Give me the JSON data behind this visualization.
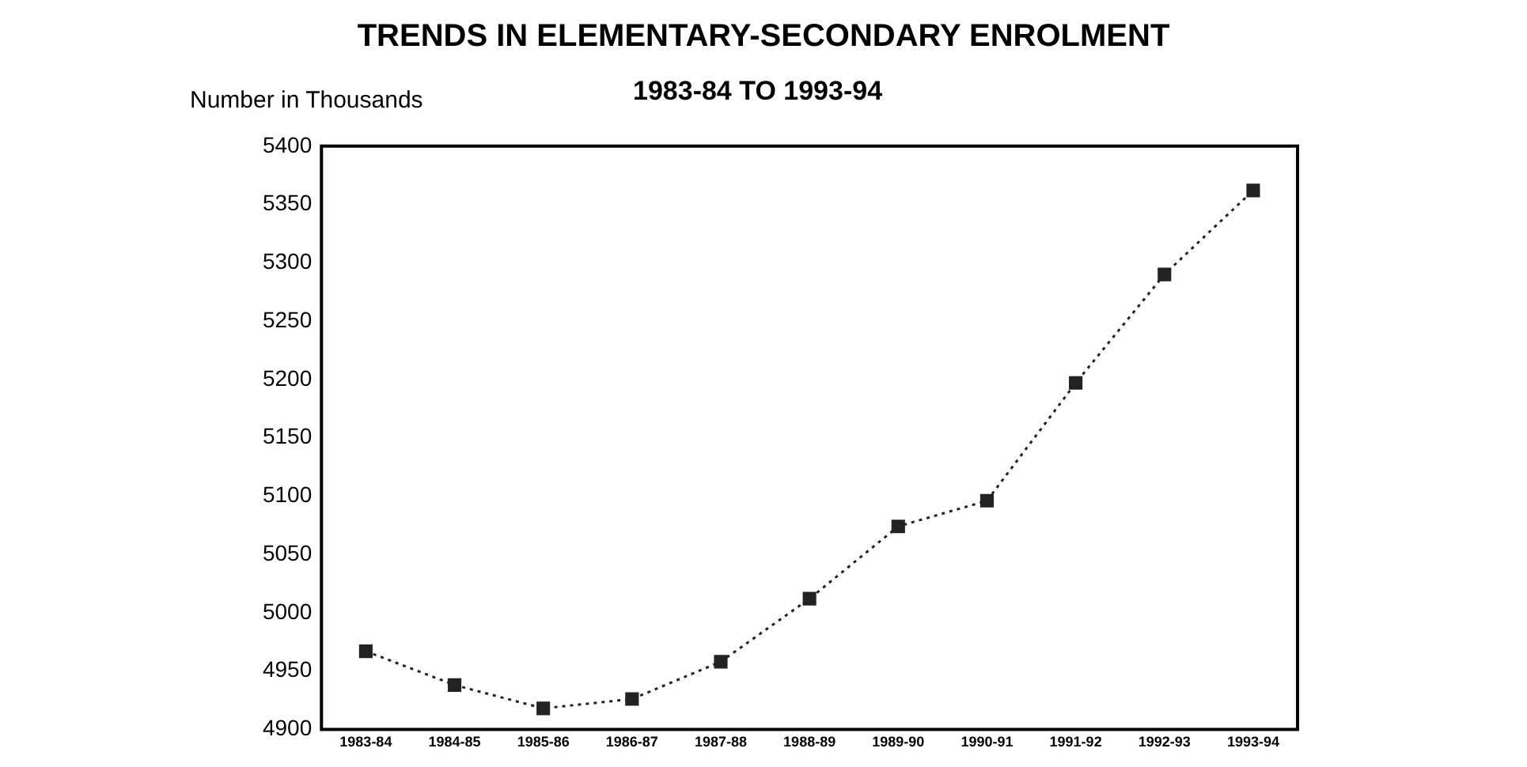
{
  "chart_data": {
    "type": "line",
    "title": "TRENDS IN ELEMENTARY-SECONDARY ENROLMENT",
    "subtitle": "1983-84 TO 1993-94",
    "ylabel": "Number in Thousands",
    "categories": [
      "1983-84",
      "1984-85",
      "1985-86",
      "1986-87",
      "1987-88",
      "1988-89",
      "1989-90",
      "1990-91",
      "1991-92",
      "1992-93",
      "1993-94"
    ],
    "series": [
      {
        "color": "#222222",
        "values": [
          4967,
          4938,
          4918,
          4926,
          4958,
          5012,
          5074,
          5096,
          5197,
          5290,
          5362
        ]
      }
    ],
    "ylim": [
      4900,
      5400
    ],
    "yticks": [
      4900,
      4950,
      5000,
      5050,
      5100,
      5150,
      5200,
      5250,
      5300,
      5350,
      5400
    ],
    "grid": false,
    "legend": false,
    "marker": "square",
    "line_style": "dotted"
  }
}
